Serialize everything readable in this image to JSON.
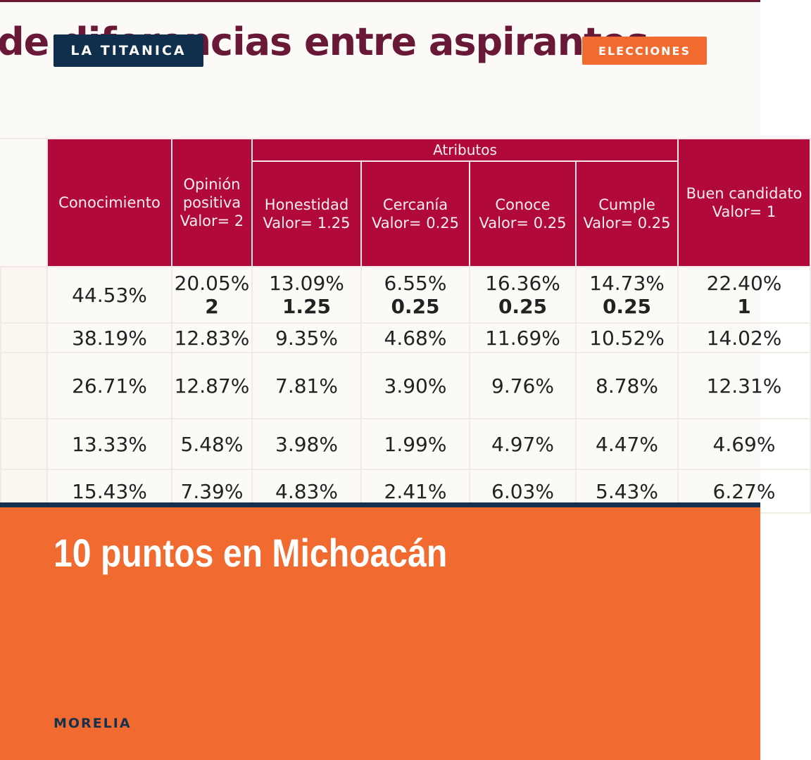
{
  "brand": {
    "name": "LA TITANICA"
  },
  "category": {
    "label": "ELECCIONES"
  },
  "photo": {
    "headline": "de diferencias entre aspirantes",
    "table": {
      "group_header": "Atributos",
      "headers": [
        "Conocimiento",
        "Opinión positiva Valor= 2",
        "Honestidad Valor= 1.25",
        "Cercanía Valor= 0.25",
        "Conoce Valor= 0.25",
        "Cumple Valor= 0.25",
        "Buen candidato Valor= 1"
      ],
      "rows": [
        [
          {
            "pct": "44.53%",
            "val": ""
          },
          {
            "pct": "20.05%",
            "val": "2"
          },
          {
            "pct": "13.09%",
            "val": "1.25"
          },
          {
            "pct": "6.55%",
            "val": "0.25"
          },
          {
            "pct": "16.36%",
            "val": "0.25"
          },
          {
            "pct": "14.73%",
            "val": "0.25"
          },
          {
            "pct": "22.40%",
            "val": "1"
          }
        ],
        [
          {
            "pct": "38.19%"
          },
          {
            "pct": "12.83%"
          },
          {
            "pct": "9.35%"
          },
          {
            "pct": "4.68%"
          },
          {
            "pct": "11.69%"
          },
          {
            "pct": "10.52%"
          },
          {
            "pct": "14.02%"
          }
        ],
        [
          {
            "pct": "26.71%"
          },
          {
            "pct": "12.87%"
          },
          {
            "pct": "7.81%"
          },
          {
            "pct": "3.90%"
          },
          {
            "pct": "9.76%"
          },
          {
            "pct": "8.78%"
          },
          {
            "pct": "12.31%"
          }
        ],
        [
          {
            "pct": "13.33%"
          },
          {
            "pct": "5.48%"
          },
          {
            "pct": "3.98%"
          },
          {
            "pct": "1.99%"
          },
          {
            "pct": "4.97%"
          },
          {
            "pct": "4.47%"
          },
          {
            "pct": "4.69%"
          }
        ],
        [
          {
            "pct": "15.43%"
          },
          {
            "pct": "7.39%"
          },
          {
            "pct": "4.83%"
          },
          {
            "pct": "2.41%"
          },
          {
            "pct": "6.03%"
          },
          {
            "pct": "5.43%"
          },
          {
            "pct": "6.27%"
          }
        ]
      ]
    }
  },
  "article": {
    "title": "10 puntos en Michoacán",
    "location": "MORELIA"
  },
  "colors": {
    "accent": "#f16a2f",
    "brand_navy": "#0f2f4c",
    "table_header": "#b0093a",
    "headline": "#6a1838"
  }
}
